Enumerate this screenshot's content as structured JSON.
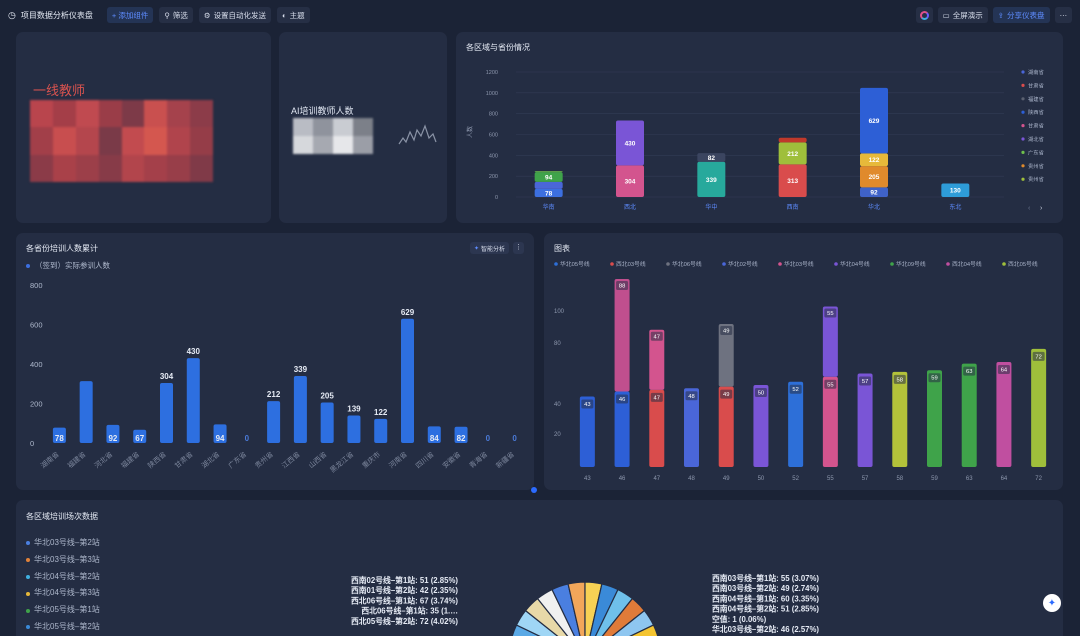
{
  "toolbar": {
    "title": "项目数据分析仪表盘",
    "buttons": [
      "+ 添加组件",
      "筛选",
      "设置自动化发送",
      "主题"
    ],
    "right_buttons": [
      "全屏演示",
      "分享仪表盘"
    ]
  },
  "card1": {
    "title": "一线教师"
  },
  "card2": {
    "title": "AI培训教师人数"
  },
  "card3": {
    "title": "各区域与省份情况",
    "chart_data": {
      "type": "bar",
      "stacked": true,
      "ylabel": "人数",
      "ylim": [
        0,
        1200
      ],
      "yticks": [
        "1200",
        "1000",
        "800",
        "600",
        "400",
        "200",
        "0"
      ],
      "categories": [
        "华南",
        "西北",
        "华中",
        "西南",
        "华北",
        "东北"
      ],
      "stacks": [
        [
          {
            "v": 78,
            "c": "#3c6fe0"
          },
          {
            "v": 67,
            "c": "#4a66d8"
          },
          {
            "v": 94,
            "c": "#3fa34a"
          },
          {
            "v": 8,
            "c": "#6fc04c"
          }
        ],
        [
          {
            "v": 304,
            "c": "#d3548e"
          },
          {
            "v": 0,
            "c": "#7a55d6"
          },
          {
            "v": 430,
            "c": "#7a55d6"
          }
        ],
        [
          {
            "v": 339,
            "c": "#27a99c"
          },
          {
            "v": 82,
            "c": "#3b4560"
          }
        ],
        [
          {
            "v": 313,
            "c": "#d94c4c"
          },
          {
            "v": 212,
            "c": "#9fbf3b"
          },
          {
            "v": 44,
            "c": "#c0392b"
          }
        ],
        [
          {
            "v": 92,
            "c": "#3f62c8"
          },
          {
            "v": 205,
            "c": "#e08a2c"
          },
          {
            "v": 122,
            "c": "#e7b93a"
          },
          {
            "v": 629,
            "c": "#2d5fd6"
          }
        ],
        [
          {
            "v": 130,
            "c": "#2e9cd8"
          }
        ]
      ],
      "legend": [
        "湖南省",
        "甘肃省",
        "福建省",
        "陕西省",
        "甘肃省",
        "湖北省",
        "广东省",
        "贵州省",
        "贵州省"
      ],
      "legend_colors": [
        "#4a66d8",
        "#d94c4c",
        "#5a6070",
        "#2d5fd6",
        "#d3548e",
        "#7a55d6",
        "#6fc04c",
        "#e08a2c",
        "#9fbf3b"
      ]
    }
  },
  "card4": {
    "title": "各省份培训人数累计",
    "smart_btn": "智能分析",
    "legend": "（签到）实际参训人数",
    "chart_data": {
      "type": "bar",
      "ylim": [
        0,
        800
      ],
      "yticks": [
        "800",
        "600",
        "400",
        "200",
        "0"
      ],
      "categories": [
        "湖南省",
        "福建省",
        "河北省",
        "福建省",
        "陕西省",
        "甘肃省",
        "湖北省",
        "广东省",
        "贵州省",
        "江西省",
        "山西省",
        "黑龙江省",
        "重庆市",
        "河南省",
        "四川省",
        "安徽省",
        "青海省",
        "新疆省"
      ],
      "values": [
        78,
        313,
        92,
        67,
        304,
        430,
        94,
        0,
        212,
        339,
        205,
        139,
        122,
        629,
        84,
        82,
        0,
        0
      ],
      "labels": [
        "78",
        "",
        "92",
        "67",
        "304",
        "430",
        "94",
        "0",
        "212",
        "339",
        "205",
        "139",
        "122",
        "629",
        "84",
        "82",
        "0",
        "0"
      ]
    }
  },
  "card5": {
    "title": "图表",
    "chart_data": {
      "type": "bar",
      "series_names": [
        "华北05号线",
        "西北03号线",
        "华北06号线",
        "华北02号线",
        "华北03号线",
        "华北04号线",
        "华北09号线",
        "西北04号线",
        "西北05号线"
      ],
      "series_colors": [
        "#2d6fd8",
        "#d94c4c",
        "#6e7280",
        "#4a66d8",
        "#d3548e",
        "#7a55d6",
        "#3fa34a",
        "#c04fa0",
        "#9fbf3b"
      ],
      "yticks": [
        "100",
        "80",
        "40",
        "20"
      ],
      "ylim": [
        0,
        100
      ],
      "categories": [
        "43",
        "46",
        "47",
        "48",
        "49",
        "50",
        "52",
        "55",
        "57",
        "58",
        "59",
        "63",
        "64",
        "72"
      ],
      "bars": [
        {
          "bottom": 43,
          "top": 0,
          "bc": "#2d5fd6",
          "tc": ""
        },
        {
          "bottom": 46,
          "top": 88,
          "bc": "#2d5fd6",
          "tc": "#c04f8e"
        },
        {
          "bottom": 47,
          "top": 47,
          "bc": "#d94c4c",
          "tc": "#d3548e"
        },
        {
          "bottom": 48,
          "top": 0,
          "bc": "#4a66d8",
          "tc": ""
        },
        {
          "bottom": 49,
          "top": 49,
          "bc": "#d94c4c",
          "tc": "#6e7280"
        },
        {
          "bottom": 50,
          "top": 0,
          "bc": "#7a55d6",
          "tc": ""
        },
        {
          "bottom": 52,
          "top": 0,
          "bc": "#2d6fd8",
          "tc": ""
        },
        {
          "bottom": 55,
          "top": 55,
          "bc": "#d3548e",
          "tc": "#7a55d6"
        },
        {
          "bottom": 57,
          "top": 0,
          "bc": "#7a55d6",
          "tc": ""
        },
        {
          "bottom": 58,
          "top": 0,
          "bc": "#b3c23a",
          "tc": ""
        },
        {
          "bottom": 59,
          "top": 0,
          "bc": "#3fa34a",
          "tc": ""
        },
        {
          "bottom": 63,
          "top": 0,
          "bc": "#3fa34a",
          "tc": ""
        },
        {
          "bottom": 64,
          "top": 0,
          "bc": "#c04fa0",
          "tc": ""
        },
        {
          "bottom": 72,
          "top": 0,
          "bc": "#9fbf3b",
          "tc": ""
        }
      ],
      "bottom_labels": [
        "43",
        "46",
        "47",
        "48",
        "49",
        "50",
        "52",
        "55",
        "57",
        "58",
        "59",
        "63",
        "64",
        "72"
      ],
      "top_labels": [
        "",
        "",
        "47",
        "",
        "49",
        "",
        "",
        "55",
        "",
        "",
        "",
        "",
        "",
        ""
      ]
    }
  },
  "card6": {
    "title": "各区域培训场次数据",
    "legend": [
      {
        "label": "华北03号线–第2站",
        "color": "#4a7fe0"
      },
      {
        "label": "华北03号线–第3站",
        "color": "#e0823a"
      },
      {
        "label": "华北04号线–第2站",
        "color": "#3fb0e0"
      },
      {
        "label": "华北04号线–第3站",
        "color": "#e5b73a"
      },
      {
        "label": "华北05号线–第1站",
        "color": "#3fa34a"
      },
      {
        "label": "华北05号线–第2站",
        "color": "#3a8ad8"
      }
    ],
    "pie_left_labels": [
      "西南02号线–第1站: 51 (2.85%)",
      "西南01号线–第2站: 42 (2.35%)",
      "西北06号线–第1站: 67 (3.74%)",
      "西北06号线–第1站: 35 (1.…",
      "西北05号线–第2站: 72 (4.02%)"
    ],
    "pie_right_labels": [
      "西南03号线–第1站: 55 (3.07%)",
      "西南03号线–第2站: 49 (2.74%)",
      "西南04号线–第1站: 60 (3.35%)",
      "西南04号线–第2站: 51 (2.85%)",
      "空值: 1 (0.06%)",
      "华北03号线–第2站: 46 (2.57%)"
    ]
  }
}
